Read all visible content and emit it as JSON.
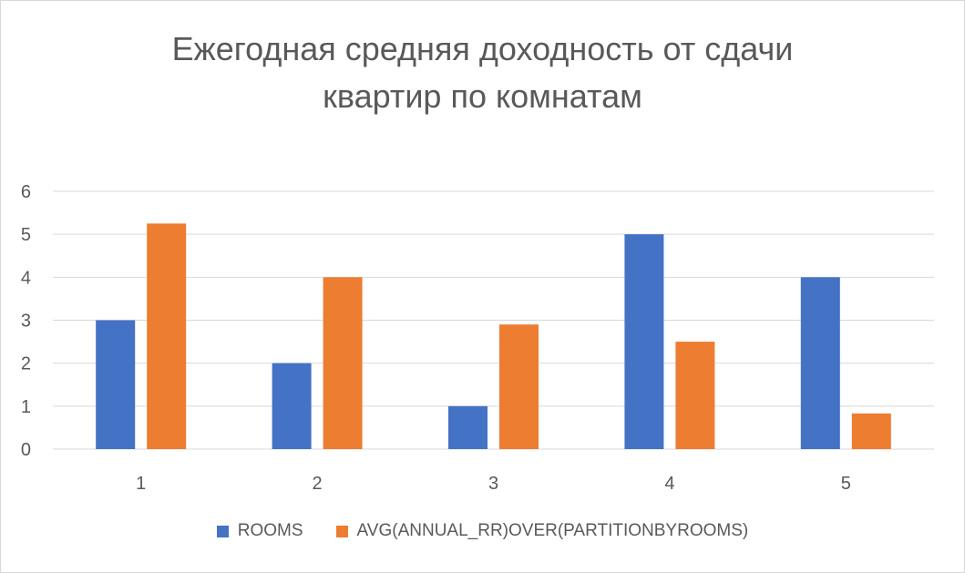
{
  "chart_data": {
    "type": "bar",
    "title_lines": [
      "Ежегодная средняя доходность от сдачи",
      "квартир по комнатам"
    ],
    "categories": [
      "1",
      "2",
      "3",
      "4",
      "5"
    ],
    "ylim": [
      0,
      6
    ],
    "yticks": [
      "0",
      "1",
      "2",
      "3",
      "4",
      "5",
      "6"
    ],
    "grid": true,
    "legend_position": "bottom",
    "series": [
      {
        "name": "ROOMS",
        "color": "#4472c4",
        "values": [
          3,
          2,
          1,
          5,
          4
        ]
      },
      {
        "name": "AVG(ANNUAL_RR)OVER(PARTITIONBYROOMS)",
        "color": "#ed7d31",
        "values": [
          5.25,
          4.0,
          2.9,
          2.5,
          0.83
        ]
      }
    ]
  }
}
